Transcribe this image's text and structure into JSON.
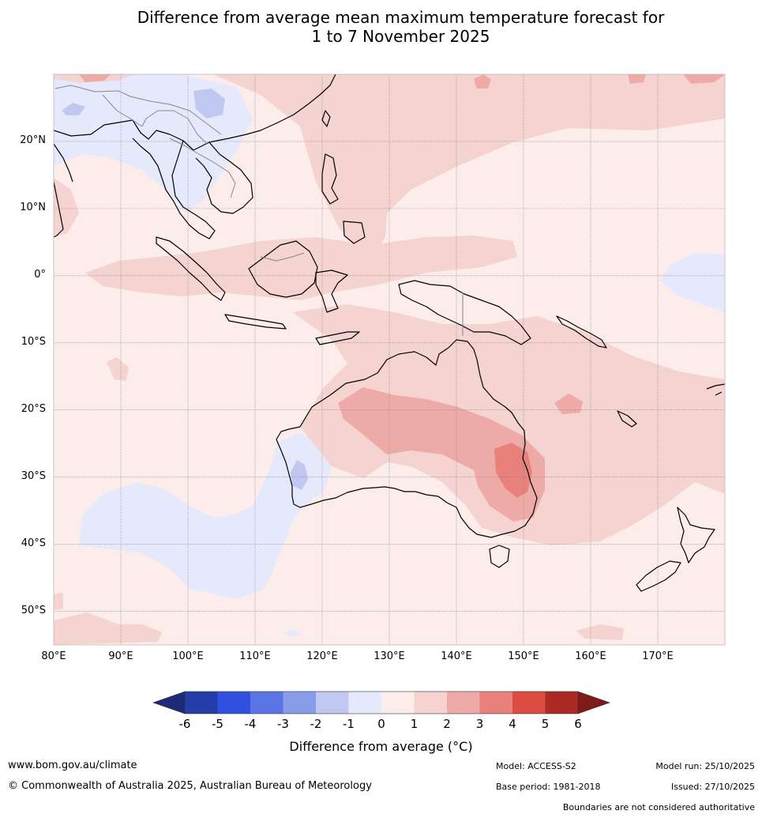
{
  "title": {
    "line1": "Difference from average mean maximum temperature forecast for",
    "line2": "1 to 7 November 2025"
  },
  "map": {
    "lon_range": [
      80,
      180
    ],
    "lat_range": [
      -55,
      30
    ],
    "lat_labels": [
      "20°N",
      "10°N",
      "0°",
      "10°S",
      "20°S",
      "30°S",
      "40°S",
      "50°S"
    ],
    "lon_labels": [
      "80°E",
      "90°E",
      "100°E",
      "110°E",
      "120°E",
      "130°E",
      "140°E",
      "150°E",
      "160°E",
      "170°E"
    ]
  },
  "colorbar": {
    "ticks": [
      "-6",
      "-5",
      "-4",
      "-3",
      "-2",
      "-1",
      "0",
      "1",
      "2",
      "3",
      "4",
      "5",
      "6"
    ],
    "colors": [
      "#253da8",
      "#3050e0",
      "#5a74e6",
      "#8a9be9",
      "#c0c8f2",
      "#e6e9fb",
      "#fcecea",
      "#f4d3d0",
      "#eeaaa6",
      "#e8817b",
      "#dc4c41",
      "#ab2a23"
    ],
    "under_color": "#1c2a78",
    "over_color": "#7e1b18",
    "label": "Difference from average (°C)"
  },
  "footer": {
    "url": "www.bom.gov.au/climate",
    "copyright": "© Commonwealth of Australia 2025, Australian Bureau of Meteorology",
    "model": "Model: ACCESS-S2",
    "base_period": "Base period: 1981-2018",
    "model_run": "Model run: 25/10/2025",
    "issued": "Issued: 27/10/2025",
    "disclaimer": "Boundaries are not considered authoritative"
  }
}
